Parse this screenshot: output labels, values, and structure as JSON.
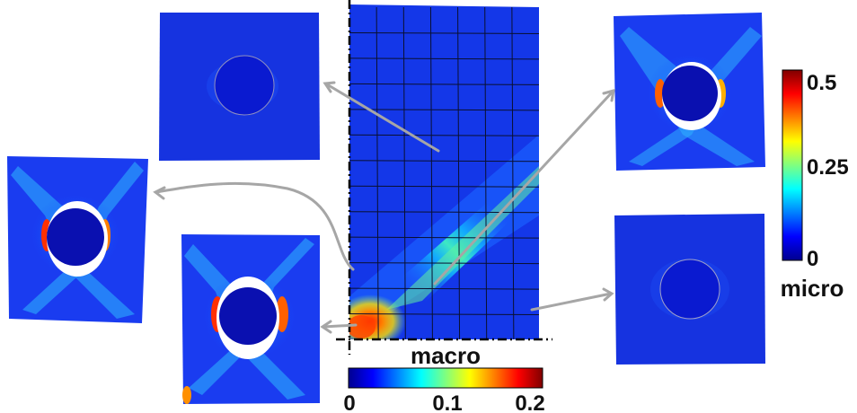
{
  "macro_colorbar": {
    "label": "macro",
    "ticks": [
      "0",
      "0.1",
      "0.2"
    ]
  },
  "micro_colorbar": {
    "label": "micro",
    "ticks": [
      "0.5",
      "0.25",
      "0"
    ]
  },
  "colors": {
    "jet_dark_blue": "#00008f",
    "jet_blue": "#0000ff",
    "jet_cyan": "#00ffff",
    "jet_yellow": "#ffff00",
    "jet_red": "#ff0000",
    "jet_dark_red": "#800000",
    "arrow_gray": "#a6a6a6",
    "axis_black": "#000000"
  }
}
